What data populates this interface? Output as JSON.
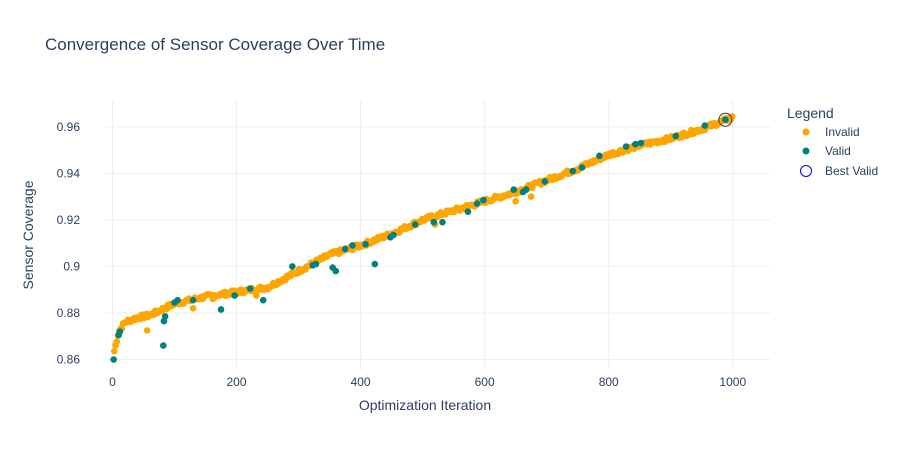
{
  "chart_data": {
    "type": "scatter",
    "title": "Convergence of Sensor Coverage Over Time",
    "xlabel": "Optimization Iteration",
    "ylabel": "Sensor Coverage",
    "xlim": [
      -12,
      1060
    ],
    "ylim": [
      0.8555,
      0.9715
    ],
    "x_ticks": [
      0,
      200,
      400,
      600,
      800,
      1000
    ],
    "x_tick_labels": [
      "0",
      "200",
      "400",
      "600",
      "800",
      "1000"
    ],
    "y_ticks": [
      0.86,
      0.88,
      0.9,
      0.92,
      0.94,
      0.96
    ],
    "y_tick_labels": [
      "0.86",
      "0.88",
      "0.9",
      "0.92",
      "0.94",
      "0.96"
    ],
    "grid": true,
    "legend": {
      "title": "Legend",
      "position": "top-right",
      "entries": [
        "Invalid",
        "Valid",
        "Best Valid"
      ]
    },
    "colors": {
      "invalid": "#FFA500",
      "valid": "#008080",
      "best_valid": "#0000FF",
      "grid": "#EEEEEE",
      "text": "#2A3F5F"
    },
    "invalid_trend": {
      "x": [
        0,
        10,
        20,
        40,
        60,
        100,
        150,
        200,
        250,
        300,
        350,
        400,
        450,
        500,
        550,
        600,
        650,
        700,
        750,
        800,
        850,
        900,
        950,
        1000
      ],
      "y": [
        0.86,
        0.872,
        0.876,
        0.878,
        0.879,
        0.884,
        0.887,
        0.889,
        0.891,
        0.898,
        0.905,
        0.909,
        0.914,
        0.92,
        0.924,
        0.928,
        0.932,
        0.937,
        0.942,
        0.948,
        0.952,
        0.955,
        0.959,
        0.964
      ]
    },
    "invalid_outliers": {
      "x": [
        56,
        130,
        162,
        232,
        520,
        560,
        650,
        675
      ],
      "y": [
        0.8725,
        0.882,
        0.886,
        0.8875,
        0.918,
        0.924,
        0.928,
        0.93
      ]
    },
    "series": [
      {
        "name": "Valid",
        "x": [
          2,
          10,
          12,
          82,
          83,
          85,
          100,
          105,
          130,
          175,
          197,
          222,
          243,
          290,
          323,
          328,
          355,
          360,
          375,
          387,
          408,
          423,
          448,
          453,
          488,
          518,
          532,
          573,
          588,
          598,
          647,
          662,
          667,
          697,
          742,
          757,
          785,
          828,
          843,
          852,
          908,
          955,
          988
        ],
        "y": [
          0.86,
          0.8705,
          0.872,
          0.866,
          0.8765,
          0.8785,
          0.8845,
          0.8855,
          0.8855,
          0.8815,
          0.8875,
          0.8905,
          0.8855,
          0.9,
          0.9005,
          0.901,
          0.8995,
          0.898,
          0.9075,
          0.909,
          0.9095,
          0.901,
          0.9125,
          0.9135,
          0.918,
          0.919,
          0.919,
          0.9235,
          0.927,
          0.9285,
          0.933,
          0.932,
          0.933,
          0.9365,
          0.941,
          0.9425,
          0.9475,
          0.9515,
          0.9525,
          0.953,
          0.956,
          0.9605,
          0.963
        ]
      },
      {
        "name": "Best Valid",
        "x": [
          988
        ],
        "y": [
          0.963
        ]
      }
    ]
  }
}
